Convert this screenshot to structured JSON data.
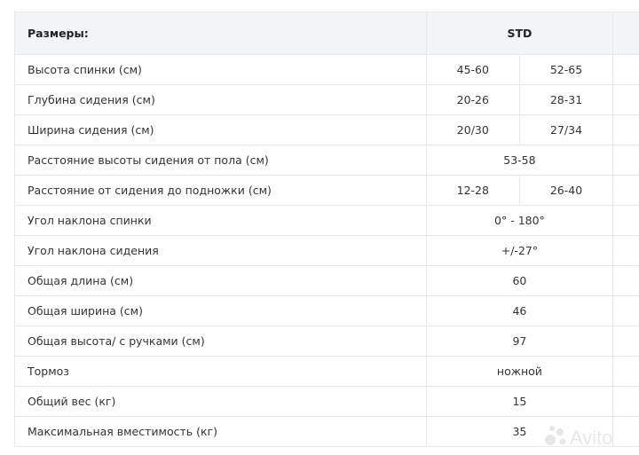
{
  "header": {
    "label": "Размеры:",
    "column": "STD"
  },
  "rows": [
    {
      "label": "Высота спинки (см)",
      "values": [
        "45-60",
        "52-65"
      ]
    },
    {
      "label": "Глубина сидения (см)",
      "values": [
        "20-26",
        "28-31"
      ]
    },
    {
      "label": "Ширина сидения (см)",
      "values": [
        "20/30",
        "27/34"
      ]
    },
    {
      "label": "Расстояние высоты сидения от пола (см)",
      "values": [
        "53-58"
      ]
    },
    {
      "label": "Расстояние от сидения до подножки (см)",
      "values": [
        "12-28",
        "26-40"
      ]
    },
    {
      "label": "Угол наклона спинки",
      "values": [
        "0° - 180°"
      ]
    },
    {
      "label": "Угол наклона сидения",
      "values": [
        "+/-27°"
      ]
    },
    {
      "label": "Общая длина (см)",
      "values": [
        "60"
      ]
    },
    {
      "label": "Общая ширина (см)",
      "values": [
        "46"
      ]
    },
    {
      "label": "Общая высота/ с ручками (см)",
      "values": [
        "97"
      ]
    },
    {
      "label": "Тормоз",
      "values": [
        "ножной"
      ]
    },
    {
      "label": "Общий вес (кг)",
      "values": [
        "15"
      ]
    },
    {
      "label": "Максимальная вместимость (кг)",
      "values": [
        "35"
      ]
    }
  ],
  "watermark": "Avito"
}
